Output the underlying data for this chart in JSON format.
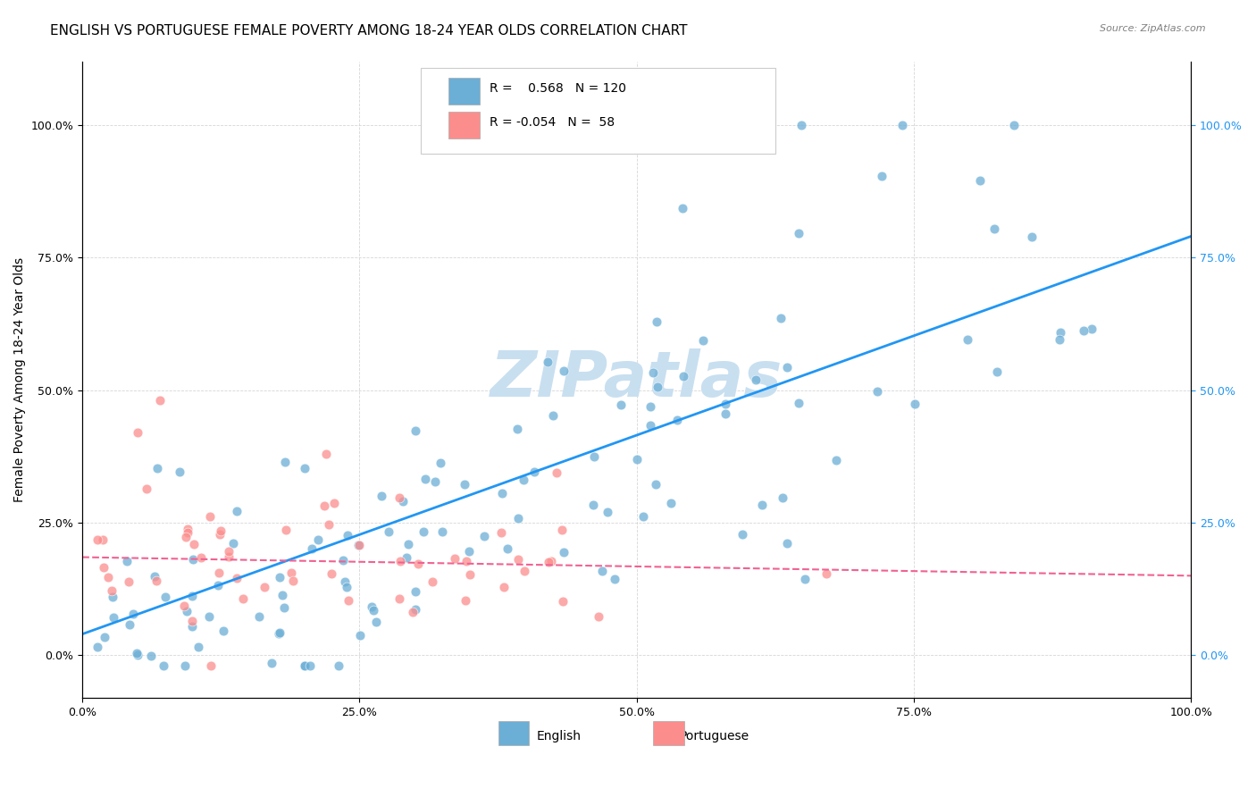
{
  "title": "ENGLISH VS PORTUGUESE FEMALE POVERTY AMONG 18-24 YEAR OLDS CORRELATION CHART",
  "source": "Source: ZipAtlas.com",
  "xlabel": "",
  "ylabel": "Female Poverty Among 18-24 Year Olds",
  "xlim": [
    0,
    1
  ],
  "ylim": [
    -0.05,
    1.1
  ],
  "xticks": [
    0.0,
    0.25,
    0.5,
    0.75,
    1.0
  ],
  "xtick_labels": [
    "0.0%",
    "25.0%",
    "50.0%",
    "75.0%",
    "100.0%"
  ],
  "ytick_labels": [
    "0.0%",
    "25.0%",
    "50.0%",
    "75.0%",
    "100.0%"
  ],
  "yticks": [
    0.0,
    0.25,
    0.5,
    0.75,
    1.0
  ],
  "english_color": "#6baed6",
  "portuguese_color": "#fc8d8d",
  "english_R": 0.568,
  "english_N": 120,
  "portuguese_R": -0.054,
  "portuguese_N": 58,
  "legend_english": "English",
  "legend_portuguese": "Portuguese",
  "watermark": "ZIPatlas",
  "watermark_color": "#c8dff0",
  "title_fontsize": 11,
  "axis_label_fontsize": 10,
  "tick_fontsize": 9,
  "english_seed": 42,
  "portuguese_seed": 7,
  "english_line_color": "#2196F3",
  "portuguese_line_color": "#F06292",
  "background_color": "#ffffff",
  "right_ytick_labels": [
    "0.0%",
    "25.0%",
    "50.0%",
    "75.0%",
    "100.0%"
  ],
  "right_yticks": [
    0.0,
    0.25,
    0.5,
    0.75,
    1.0
  ]
}
